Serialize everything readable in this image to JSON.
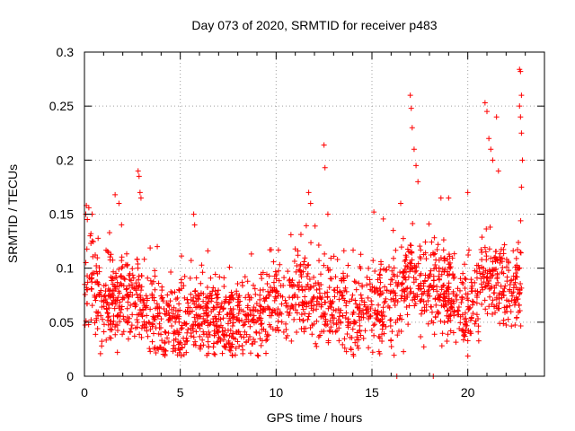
{
  "chart_data": {
    "type": "scatter",
    "title": "Day 073 of 2020, SRMTID for receiver p483",
    "xlabel": "GPS time / hours",
    "ylabel": "SRMTID / TECUs",
    "xlim": [
      0,
      24
    ],
    "ylim": [
      0,
      0.3
    ],
    "xticks": [
      {
        "value": 0,
        "label": "0"
      },
      {
        "value": 5,
        "label": "5"
      },
      {
        "value": 10,
        "label": "10"
      },
      {
        "value": 15,
        "label": "15"
      },
      {
        "value": 20,
        "label": "20"
      }
    ],
    "yticks": [
      {
        "value": 0,
        "label": "0"
      },
      {
        "value": 0.05,
        "label": "0.05"
      },
      {
        "value": 0.1,
        "label": "0.1"
      },
      {
        "value": 0.15,
        "label": "0.15"
      },
      {
        "value": 0.2,
        "label": "0.2"
      },
      {
        "value": 0.25,
        "label": "0.25"
      },
      {
        "value": 0.3,
        "label": "0.3"
      }
    ],
    "grid": true,
    "marker": "+",
    "color": "#ff0000",
    "series": [
      {
        "name": "SRMTID",
        "generated_profile": [
          [
            0.0,
            0.08
          ],
          [
            0.5,
            0.09
          ],
          [
            1.0,
            0.065
          ],
          [
            1.5,
            0.075
          ],
          [
            2.0,
            0.07
          ],
          [
            2.5,
            0.07
          ],
          [
            3.0,
            0.065
          ],
          [
            3.5,
            0.055
          ],
          [
            4.0,
            0.05
          ],
          [
            4.5,
            0.05
          ],
          [
            5.0,
            0.05
          ],
          [
            5.5,
            0.05
          ],
          [
            6.0,
            0.055
          ],
          [
            6.5,
            0.055
          ],
          [
            7.0,
            0.05
          ],
          [
            7.5,
            0.045
          ],
          [
            8.0,
            0.05
          ],
          [
            8.5,
            0.055
          ],
          [
            9.0,
            0.06
          ],
          [
            9.5,
            0.065
          ],
          [
            10.0,
            0.07
          ],
          [
            10.5,
            0.075
          ],
          [
            11.0,
            0.08
          ],
          [
            11.5,
            0.085
          ],
          [
            12.0,
            0.065
          ],
          [
            12.5,
            0.07
          ],
          [
            13.0,
            0.065
          ],
          [
            13.5,
            0.065
          ],
          [
            14.0,
            0.06
          ],
          [
            14.5,
            0.065
          ],
          [
            15.0,
            0.07
          ],
          [
            15.5,
            0.065
          ],
          [
            16.0,
            0.07
          ],
          [
            16.5,
            0.075
          ],
          [
            17.0,
            0.09
          ],
          [
            17.5,
            0.085
          ],
          [
            18.0,
            0.085
          ],
          [
            18.5,
            0.085
          ],
          [
            19.0,
            0.08
          ],
          [
            19.5,
            0.065
          ],
          [
            20.0,
            0.06
          ],
          [
            20.5,
            0.075
          ],
          [
            21.0,
            0.09
          ],
          [
            21.5,
            0.085
          ],
          [
            22.0,
            0.075
          ],
          [
            22.5,
            0.085
          ],
          [
            22.8,
            0.09
          ]
        ],
        "spikes": [
          [
            0.1,
            0.158
          ],
          [
            0.15,
            0.145
          ],
          [
            0.3,
            0.13
          ],
          [
            0.4,
            0.15
          ],
          [
            1.6,
            0.168
          ],
          [
            1.8,
            0.16
          ],
          [
            2.8,
            0.19
          ],
          [
            2.85,
            0.185
          ],
          [
            2.9,
            0.17
          ],
          [
            2.95,
            0.165
          ],
          [
            3.8,
            0.12
          ],
          [
            5.7,
            0.15
          ],
          [
            5.75,
            0.14
          ],
          [
            11.7,
            0.17
          ],
          [
            11.8,
            0.16
          ],
          [
            12.5,
            0.214
          ],
          [
            12.55,
            0.193
          ],
          [
            12.7,
            0.15
          ],
          [
            15.1,
            0.152
          ],
          [
            16.5,
            0.16
          ],
          [
            17.0,
            0.26
          ],
          [
            17.05,
            0.248
          ],
          [
            17.1,
            0.23
          ],
          [
            17.2,
            0.21
          ],
          [
            17.3,
            0.195
          ],
          [
            17.4,
            0.18
          ],
          [
            18.6,
            0.165
          ],
          [
            19.0,
            0.165
          ],
          [
            20.0,
            0.17
          ],
          [
            20.9,
            0.253
          ],
          [
            21.0,
            0.245
          ],
          [
            21.1,
            0.22
          ],
          [
            21.2,
            0.21
          ],
          [
            21.3,
            0.2
          ],
          [
            21.5,
            0.24
          ],
          [
            21.6,
            0.19
          ],
          [
            22.7,
            0.284
          ],
          [
            22.75,
            0.282
          ],
          [
            22.8,
            0.26
          ],
          [
            22.7,
            0.25
          ],
          [
            22.75,
            0.24
          ],
          [
            22.8,
            0.225
          ],
          [
            22.85,
            0.2
          ],
          [
            22.8,
            0.175
          ],
          [
            16.3,
            0.0
          ],
          [
            18.2,
            0.0
          ]
        ],
        "point_count": 1900,
        "scatter_spread": 0.02
      }
    ]
  }
}
